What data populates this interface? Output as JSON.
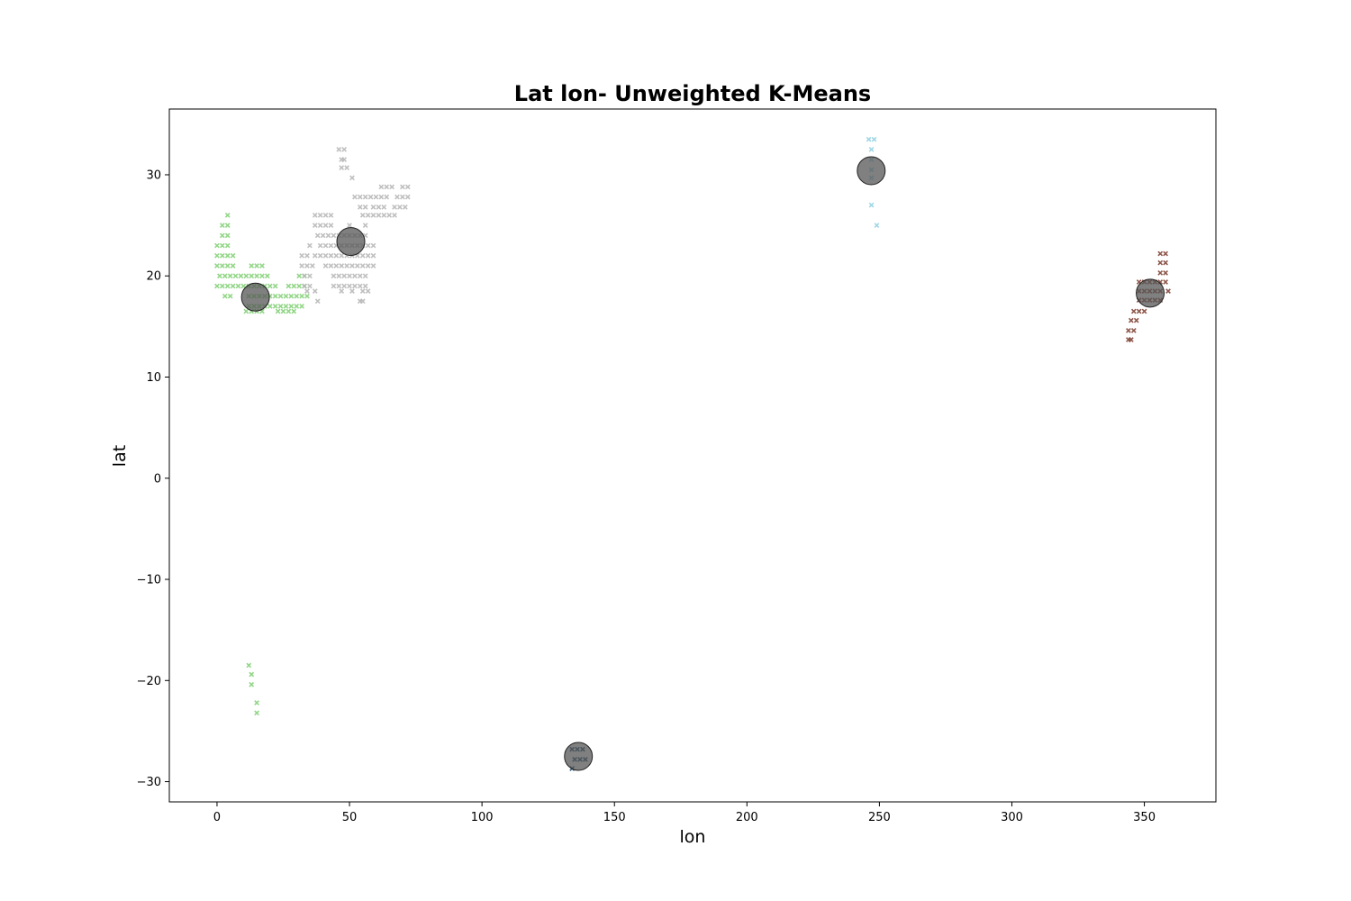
{
  "chart_data": {
    "type": "scatter",
    "title": "Lat lon- Unweighted K-Means",
    "xlabel": "lon",
    "ylabel": "lat",
    "xlim": [
      -18,
      377
    ],
    "ylim": [
      -32,
      36.5
    ],
    "xticks": [
      0,
      50,
      100,
      150,
      200,
      250,
      300,
      350
    ],
    "xtick_labels": [
      "0",
      "50",
      "100",
      "150",
      "200",
      "250",
      "300",
      "350"
    ],
    "yticks": [
      -30,
      -20,
      -10,
      0,
      10,
      20,
      30
    ],
    "ytick_labels": [
      "−30",
      "−20",
      "−10",
      "0",
      "10",
      "20",
      "30"
    ],
    "grid": false,
    "legend": "none",
    "marker": "x",
    "series": [
      {
        "color": "#7fcf72",
        "points": [
          [
            4,
            26
          ],
          [
            2,
            25
          ],
          [
            4,
            25
          ],
          [
            2,
            24
          ],
          [
            4,
            24
          ],
          [
            0,
            23
          ],
          [
            2,
            23
          ],
          [
            4,
            23
          ],
          [
            0,
            22
          ],
          [
            2,
            22
          ],
          [
            4,
            22
          ],
          [
            6,
            22
          ],
          [
            0,
            21
          ],
          [
            2,
            21
          ],
          [
            4,
            21
          ],
          [
            6,
            21
          ],
          [
            13,
            21
          ],
          [
            15,
            21
          ],
          [
            17,
            21
          ],
          [
            1,
            20
          ],
          [
            3,
            20
          ],
          [
            5,
            20
          ],
          [
            7,
            20
          ],
          [
            9,
            20
          ],
          [
            11,
            20
          ],
          [
            13,
            20
          ],
          [
            15,
            20
          ],
          [
            17,
            20
          ],
          [
            19,
            20
          ],
          [
            31,
            20
          ],
          [
            33,
            20
          ],
          [
            0,
            19
          ],
          [
            2,
            19
          ],
          [
            4,
            19
          ],
          [
            6,
            19
          ],
          [
            8,
            19
          ],
          [
            10,
            19
          ],
          [
            12,
            19
          ],
          [
            14,
            19
          ],
          [
            16,
            19
          ],
          [
            18,
            19
          ],
          [
            20,
            19
          ],
          [
            22,
            19
          ],
          [
            27,
            19
          ],
          [
            29,
            19
          ],
          [
            31,
            19
          ],
          [
            33,
            19
          ],
          [
            3,
            18
          ],
          [
            5,
            18
          ],
          [
            12,
            18
          ],
          [
            14,
            18
          ],
          [
            16,
            18
          ],
          [
            18,
            18
          ],
          [
            20,
            18
          ],
          [
            22,
            18
          ],
          [
            24,
            18
          ],
          [
            26,
            18
          ],
          [
            28,
            18
          ],
          [
            30,
            18
          ],
          [
            32,
            18
          ],
          [
            34,
            18
          ],
          [
            12,
            17
          ],
          [
            14,
            17
          ],
          [
            16,
            17
          ],
          [
            18,
            17
          ],
          [
            20,
            17
          ],
          [
            22,
            17
          ],
          [
            24,
            17
          ],
          [
            26,
            17
          ],
          [
            28,
            17
          ],
          [
            30,
            17
          ],
          [
            32,
            17
          ],
          [
            11,
            16.5
          ],
          [
            13,
            16.5
          ],
          [
            15,
            16.5
          ],
          [
            17,
            16.5
          ],
          [
            23,
            16.5
          ],
          [
            25,
            16.5
          ],
          [
            27,
            16.5
          ],
          [
            29,
            16.5
          ],
          [
            12,
            -18.5
          ],
          [
            13,
            -19.4
          ],
          [
            13,
            -20.4
          ],
          [
            15,
            -22.2
          ],
          [
            15,
            -23.2
          ]
        ]
      },
      {
        "color": "#b4b4b4",
        "points": [
          [
            46,
            32.5
          ],
          [
            48,
            32.5
          ],
          [
            47,
            31.5
          ],
          [
            48,
            31.5
          ],
          [
            47,
            30.7
          ],
          [
            49,
            30.7
          ],
          [
            51,
            29.7
          ],
          [
            62,
            28.8
          ],
          [
            64,
            28.8
          ],
          [
            66,
            28.8
          ],
          [
            70,
            28.8
          ],
          [
            72,
            28.8
          ],
          [
            52,
            27.8
          ],
          [
            54,
            27.8
          ],
          [
            56,
            27.8
          ],
          [
            58,
            27.8
          ],
          [
            60,
            27.8
          ],
          [
            62,
            27.8
          ],
          [
            64,
            27.8
          ],
          [
            68,
            27.8
          ],
          [
            70,
            27.8
          ],
          [
            72,
            27.8
          ],
          [
            54,
            26.8
          ],
          [
            56,
            26.8
          ],
          [
            59,
            26.8
          ],
          [
            61,
            26.8
          ],
          [
            63,
            26.8
          ],
          [
            67,
            26.8
          ],
          [
            69,
            26.8
          ],
          [
            71,
            26.8
          ],
          [
            37,
            26
          ],
          [
            39,
            26
          ],
          [
            41,
            26
          ],
          [
            43,
            26
          ],
          [
            55,
            26
          ],
          [
            57,
            26
          ],
          [
            59,
            26
          ],
          [
            61,
            26
          ],
          [
            63,
            26
          ],
          [
            65,
            26
          ],
          [
            67,
            26
          ],
          [
            37,
            25
          ],
          [
            39,
            25
          ],
          [
            41,
            25
          ],
          [
            43,
            25
          ],
          [
            50,
            25
          ],
          [
            56,
            25
          ],
          [
            38,
            24
          ],
          [
            40,
            24
          ],
          [
            42,
            24
          ],
          [
            44,
            24
          ],
          [
            46,
            24
          ],
          [
            48,
            24
          ],
          [
            50,
            24
          ],
          [
            52,
            24
          ],
          [
            54,
            24
          ],
          [
            56,
            24
          ],
          [
            35,
            23
          ],
          [
            39,
            23
          ],
          [
            41,
            23
          ],
          [
            43,
            23
          ],
          [
            45,
            23
          ],
          [
            47,
            23
          ],
          [
            49,
            23
          ],
          [
            51,
            23
          ],
          [
            53,
            23
          ],
          [
            55,
            23
          ],
          [
            57,
            23
          ],
          [
            59,
            23
          ],
          [
            32,
            22
          ],
          [
            34,
            22
          ],
          [
            37,
            22
          ],
          [
            39,
            22
          ],
          [
            41,
            22
          ],
          [
            43,
            22
          ],
          [
            45,
            22
          ],
          [
            47,
            22
          ],
          [
            49,
            22
          ],
          [
            51,
            22
          ],
          [
            53,
            22
          ],
          [
            55,
            22
          ],
          [
            57,
            22
          ],
          [
            59,
            22
          ],
          [
            32,
            21
          ],
          [
            34,
            21
          ],
          [
            36,
            21
          ],
          [
            41,
            21
          ],
          [
            43,
            21
          ],
          [
            45,
            21
          ],
          [
            47,
            21
          ],
          [
            49,
            21
          ],
          [
            51,
            21
          ],
          [
            53,
            21
          ],
          [
            55,
            21
          ],
          [
            57,
            21
          ],
          [
            59,
            21
          ],
          [
            33,
            20
          ],
          [
            35,
            20
          ],
          [
            44,
            20
          ],
          [
            46,
            20
          ],
          [
            48,
            20
          ],
          [
            50,
            20
          ],
          [
            52,
            20
          ],
          [
            54,
            20
          ],
          [
            56,
            20
          ],
          [
            33,
            19
          ],
          [
            35,
            19
          ],
          [
            44,
            19
          ],
          [
            46,
            19
          ],
          [
            48,
            19
          ],
          [
            50,
            19
          ],
          [
            52,
            19
          ],
          [
            54,
            19
          ],
          [
            56,
            19
          ],
          [
            34,
            18.5
          ],
          [
            37,
            18.5
          ],
          [
            47,
            18.5
          ],
          [
            51,
            18.5
          ],
          [
            55,
            18.5
          ],
          [
            57,
            18.5
          ],
          [
            38,
            17.5
          ],
          [
            54,
            17.5
          ],
          [
            55,
            17.5
          ]
        ]
      },
      {
        "color": "#8ecfe0",
        "points": [
          [
            246,
            33.5
          ],
          [
            248,
            33.5
          ],
          [
            247,
            32.5
          ],
          [
            247,
            31.5
          ],
          [
            247,
            30.5
          ],
          [
            247,
            29.7
          ],
          [
            247,
            27
          ],
          [
            249,
            25
          ]
        ]
      },
      {
        "color": "#0b3d63",
        "points": [
          [
            134,
            -26.8
          ],
          [
            136,
            -26.8
          ],
          [
            138,
            -26.8
          ],
          [
            135,
            -27.8
          ],
          [
            137,
            -27.8
          ],
          [
            139,
            -27.8
          ],
          [
            134,
            -28.7
          ]
        ]
      },
      {
        "color": "#7a3a2c",
        "points": [
          [
            356,
            22.2
          ],
          [
            358,
            22.2
          ],
          [
            356,
            21.3
          ],
          [
            358,
            21.3
          ],
          [
            356,
            20.3
          ],
          [
            358,
            20.3
          ],
          [
            348,
            19.4
          ],
          [
            350,
            19.4
          ],
          [
            352,
            19.4
          ],
          [
            354,
            19.4
          ],
          [
            356,
            19.4
          ],
          [
            358,
            19.4
          ],
          [
            348,
            18.5
          ],
          [
            350,
            18.5
          ],
          [
            352,
            18.5
          ],
          [
            354,
            18.5
          ],
          [
            356,
            18.5
          ],
          [
            359,
            18.5
          ],
          [
            348,
            17.6
          ],
          [
            350,
            17.6
          ],
          [
            352,
            17.6
          ],
          [
            354,
            17.6
          ],
          [
            356,
            17.6
          ],
          [
            346,
            16.5
          ],
          [
            348,
            16.5
          ],
          [
            350,
            16.5
          ],
          [
            345,
            15.6
          ],
          [
            347,
            15.6
          ],
          [
            344,
            14.6
          ],
          [
            346,
            14.6
          ],
          [
            344,
            13.7
          ],
          [
            345,
            13.7
          ]
        ]
      }
    ],
    "centroids": {
      "color": "#555555",
      "points": [
        [
          14.5,
          17.9
        ],
        [
          50.5,
          23.4
        ],
        [
          246.9,
          30.4
        ],
        [
          136.4,
          -27.5
        ],
        [
          352.2,
          18.3
        ]
      ]
    }
  }
}
